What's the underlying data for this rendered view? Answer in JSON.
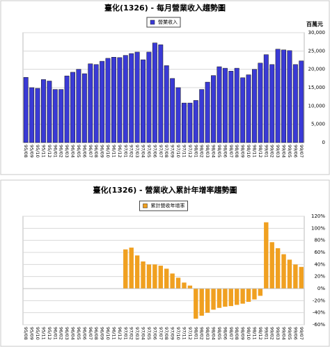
{
  "chart_data": [
    {
      "type": "bar",
      "title": "臺化(1326) - 每月營業收入趨勢圖",
      "y_label": "百萬元",
      "categories": [
        "95/08",
        "95/09",
        "95/10",
        "95/11",
        "95/12",
        "96/01",
        "96/02",
        "96/03",
        "96/04",
        "96/05",
        "96/06",
        "96/07",
        "96/08",
        "96/09",
        "96/10",
        "96/11",
        "96/12",
        "97/01",
        "97/02",
        "97/03",
        "97/04",
        "97/05",
        "97/06",
        "97/07",
        "97/08",
        "97/09",
        "97/10",
        "97/11",
        "97/12",
        "98/01",
        "98/02",
        "98/03",
        "98/04",
        "98/05",
        "98/06",
        "98/07",
        "98/08",
        "98/09",
        "98/10",
        "98/11",
        "98/12",
        "99/01",
        "99/02",
        "99/03",
        "99/04",
        "99/05",
        "99/06",
        "99/07"
      ],
      "series": [
        {
          "name": "營業收入",
          "color": "#3a3ad6",
          "values": [
            17800,
            15000,
            14800,
            17200,
            16800,
            14500,
            14500,
            18200,
            19200,
            20000,
            18800,
            21500,
            21300,
            22200,
            23000,
            23300,
            23200,
            23800,
            24300,
            24700,
            22600,
            24700,
            27200,
            26700,
            21000,
            17500,
            15000,
            10800,
            10800,
            11500,
            14500,
            16500,
            18300,
            20700,
            20300,
            19500,
            20300,
            17700,
            18500,
            20000,
            21700,
            24000,
            21300,
            25500,
            25300,
            25100,
            21300,
            22300
          ]
        }
      ],
      "ylim": [
        0,
        30000
      ],
      "yticks": [
        0,
        {
          "value": 5000,
          "label": "5,000"
        },
        {
          "value": 10000,
          "label": "10,000"
        },
        {
          "value": 15000,
          "label": "15,000"
        },
        {
          "value": 20000,
          "label": "20,000"
        },
        {
          "value": 25000,
          "label": "25,000"
        },
        {
          "value": 30000,
          "label": "30,000"
        }
      ],
      "grid": true,
      "legend": "top"
    },
    {
      "type": "bar",
      "title": "臺化(1326) - 營業收入累計年增率趨勢圖",
      "categories": [
        "95/08",
        "95/09",
        "95/10",
        "95/11",
        "95/12",
        "96/01",
        "96/02",
        "96/03",
        "96/04",
        "96/05",
        "96/06",
        "96/07",
        "96/08",
        "96/09",
        "96/10",
        "96/11",
        "96/12",
        "97/01",
        "97/02",
        "97/03",
        "97/04",
        "97/05",
        "97/06",
        "97/07",
        "97/08",
        "97/09",
        "97/10",
        "97/11",
        "97/12",
        "98/01",
        "98/02",
        "98/03",
        "98/04",
        "98/05",
        "98/06",
        "98/07",
        "98/08",
        "98/09",
        "98/10",
        "98/11",
        "98/12",
        "99/01",
        "99/02",
        "99/03",
        "99/04",
        "99/05",
        "99/06",
        "99/07"
      ],
      "series": [
        {
          "name": "累計營收年增率",
          "color": "#f0a020",
          "values": [
            0,
            0,
            0,
            0,
            0,
            0,
            0,
            0,
            0,
            0,
            0,
            0,
            0,
            0,
            0,
            0,
            0,
            65,
            68,
            55,
            45,
            40,
            40,
            38,
            33,
            25,
            18,
            10,
            5,
            -50,
            -45,
            -40,
            -35,
            -32,
            -30,
            -29,
            -27,
            -25,
            -22,
            -18,
            -12,
            110,
            77,
            67,
            57,
            48,
            40,
            36
          ]
        }
      ],
      "ylim": [
        -60,
        120
      ],
      "yticks": [
        {
          "value": -60,
          "label": "-60%"
        },
        {
          "value": -40,
          "label": "-40%"
        },
        {
          "value": -20,
          "label": "-20%"
        },
        {
          "value": 0,
          "label": "0%"
        },
        {
          "value": 20,
          "label": "20%"
        },
        {
          "value": 40,
          "label": "40%"
        },
        {
          "value": 60,
          "label": "60%"
        },
        {
          "value": 80,
          "label": "80%"
        },
        {
          "value": 100,
          "label": "100%"
        },
        {
          "value": 120,
          "label": "120%"
        }
      ],
      "grid": true,
      "legend": "top"
    }
  ]
}
